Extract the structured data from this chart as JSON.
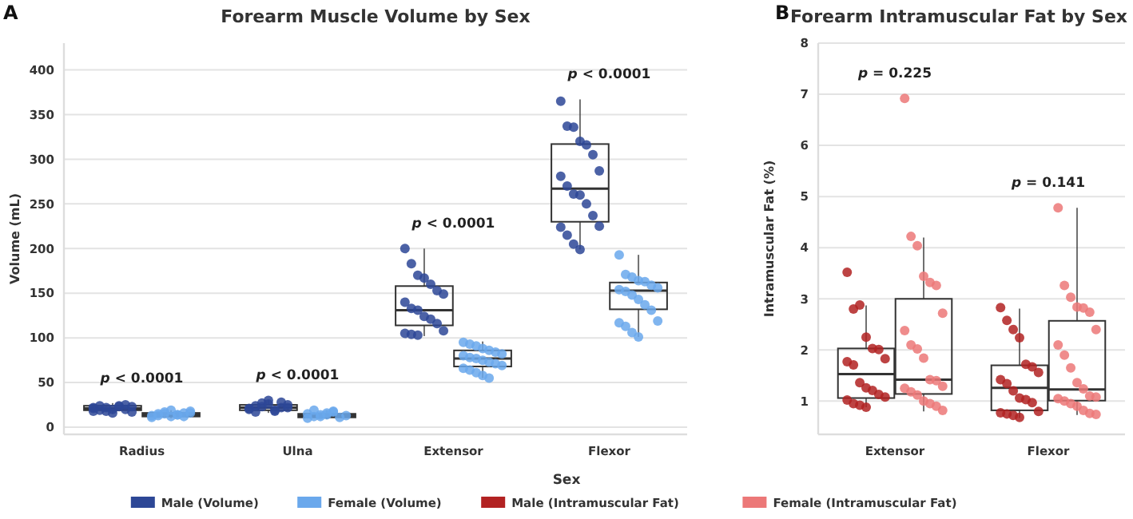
{
  "chart_data": [
    {
      "type": "box",
      "title": "Forearm Muscle Volume by Sex",
      "ylabel": "Volume (mL)",
      "categories": [
        "Radius",
        "Ulna",
        "Extensor",
        "Flexor"
      ],
      "ylim": [
        -8,
        430
      ],
      "yticks": [
        0,
        50,
        100,
        150,
        200,
        250,
        300,
        350,
        400
      ],
      "grid": "y",
      "legend": "bottom",
      "legend_title": "Sex",
      "annotations": [
        "A",
        "p < 0.0001",
        "p < 0.0001",
        "p < 0.0001",
        "p < 0.0001"
      ],
      "series": [
        {
          "color": "#333333",
          "boxes": [
            {
              "low": 15,
              "q1": 19,
              "median": 21,
              "q3": 24,
              "high": 27
            },
            {
              "low": 16,
              "q1": 19,
              "median": 22,
              "q3": 25,
              "high": 30
            },
            {
              "low": 102,
              "q1": 114,
              "median": 131,
              "q3": 158,
              "high": 200
            },
            {
              "low": 199,
              "q1": 230,
              "median": 267,
              "q3": 317,
              "high": 367
            }
          ]
        },
        {
          "color": "#333333",
          "boxes": [
            {
              "low": 10,
              "q1": 12,
              "median": 14,
              "q3": 16,
              "high": 19
            },
            {
              "low": 9,
              "q1": 11,
              "median": 13,
              "q3": 15,
              "high": 19
            },
            {
              "low": 55,
              "q1": 68,
              "median": 77,
              "q3": 86,
              "high": 96
            },
            {
              "low": 101,
              "q1": 132,
              "median": 153,
              "q3": 162,
              "high": 193
            }
          ]
        },
        {
          "name": "Male (Volume)",
          "type": "scatter",
          "color": "#2d4796",
          "x": [
            "Radius",
            "Radius",
            "Radius",
            "Radius",
            "Radius",
            "Radius",
            "Radius",
            "Radius",
            "Radius",
            "Radius",
            "Radius",
            "Radius",
            "Radius",
            "Radius",
            "Radius",
            "Ulna",
            "Ulna",
            "Ulna",
            "Ulna",
            "Ulna",
            "Ulna",
            "Ulna",
            "Ulna",
            "Ulna",
            "Ulna",
            "Ulna",
            "Ulna",
            "Ulna",
            "Ulna",
            "Extensor",
            "Extensor",
            "Extensor",
            "Extensor",
            "Extensor",
            "Extensor",
            "Extensor",
            "Extensor",
            "Extensor",
            "Extensor",
            "Extensor",
            "Extensor",
            "Extensor",
            "Extensor",
            "Extensor",
            "Extensor",
            "Extensor",
            "Flexor",
            "Flexor",
            "Flexor",
            "Flexor",
            "Flexor",
            "Flexor",
            "Flexor",
            "Flexor",
            "Flexor",
            "Flexor",
            "Flexor",
            "Flexor",
            "Flexor",
            "Flexor",
            "Flexor",
            "Flexor",
            "Flexor",
            "Flexor"
          ],
          "values": [
            22,
            24,
            18,
            20,
            23,
            25,
            17,
            21,
            19,
            22,
            16,
            24,
            20,
            23,
            18,
            20,
            24,
            27,
            30,
            18,
            22,
            25,
            21,
            17,
            23,
            26,
            19,
            28,
            22,
            200,
            183,
            170,
            167,
            160,
            153,
            149,
            140,
            133,
            131,
            124,
            121,
            116,
            108,
            105,
            104,
            103,
            365,
            337,
            336,
            320,
            316,
            305,
            287,
            281,
            270,
            261,
            260,
            250,
            237,
            225,
            224,
            215,
            205,
            199
          ]
        },
        {
          "name": "Female (Volume)",
          "type": "scatter",
          "color": "#6aa8ec",
          "x": [
            "Radius",
            "Radius",
            "Radius",
            "Radius",
            "Radius",
            "Radius",
            "Radius",
            "Radius",
            "Radius",
            "Radius",
            "Radius",
            "Radius",
            "Radius",
            "Radius",
            "Ulna",
            "Ulna",
            "Ulna",
            "Ulna",
            "Ulna",
            "Ulna",
            "Ulna",
            "Ulna",
            "Ulna",
            "Ulna",
            "Ulna",
            "Ulna",
            "Extensor",
            "Extensor",
            "Extensor",
            "Extensor",
            "Extensor",
            "Extensor",
            "Extensor",
            "Extensor",
            "Extensor",
            "Extensor",
            "Extensor",
            "Extensor",
            "Extensor",
            "Extensor",
            "Extensor",
            "Extensor",
            "Extensor",
            "Extensor",
            "Extensor",
            "Flexor",
            "Flexor",
            "Flexor",
            "Flexor",
            "Flexor",
            "Flexor",
            "Flexor",
            "Flexor",
            "Flexor",
            "Flexor",
            "Flexor",
            "Flexor",
            "Flexor",
            "Flexor",
            "Flexor",
            "Flexor",
            "Flexor",
            "Flexor"
          ],
          "values": [
            13,
            15,
            17,
            12,
            14,
            16,
            18,
            11,
            13,
            15,
            19,
            14,
            12,
            16,
            10,
            12,
            14,
            16,
            18,
            11,
            13,
            15,
            19,
            12,
            14,
            17,
            95,
            93,
            91,
            88,
            86,
            84,
            82,
            80,
            78,
            77,
            75,
            73,
            71,
            69,
            66,
            64,
            61,
            58,
            55,
            193,
            171,
            168,
            164,
            163,
            159,
            156,
            154,
            152,
            148,
            143,
            137,
            131,
            119,
            117,
            113,
            106,
            101
          ]
        }
      ]
    },
    {
      "type": "box",
      "title": "Forearm Intramuscular Fat by Sex",
      "ylabel": "Intramuscular Fat (%)",
      "categories": [
        "Extensor",
        "Flexor"
      ],
      "ylim": [
        0.35,
        8
      ],
      "yticks": [
        1,
        2,
        3,
        4,
        5,
        6,
        7,
        8
      ],
      "grid": "y",
      "legend": "bottom",
      "annotations": [
        "B",
        "p = 0.225",
        "p = 0.141"
      ],
      "series": [
        {
          "color": "#333333",
          "boxes": [
            {
              "low": 0.88,
              "q1": 1.06,
              "median": 1.53,
              "q3": 2.03,
              "high": 2.87
            },
            {
              "low": 0.67,
              "q1": 0.82,
              "median": 1.26,
              "q3": 1.7,
              "high": 2.81
            }
          ]
        },
        {
          "color": "#333333",
          "boxes": [
            {
              "low": 0.8,
              "q1": 1.14,
              "median": 1.42,
              "q3": 3.0,
              "high": 4.2
            },
            {
              "low": 0.73,
              "q1": 1.01,
              "median": 1.23,
              "q3": 2.57,
              "high": 4.78
            }
          ]
        },
        {
          "name": "Male (Intramuscular Fat)",
          "type": "scatter",
          "color": "#b22222",
          "x": [
            "Extensor",
            "Extensor",
            "Extensor",
            "Extensor",
            "Extensor",
            "Extensor",
            "Extensor",
            "Extensor",
            "Extensor",
            "Extensor",
            "Extensor",
            "Extensor",
            "Extensor",
            "Extensor",
            "Extensor",
            "Extensor",
            "Extensor",
            "Extensor",
            "Flexor",
            "Flexor",
            "Flexor",
            "Flexor",
            "Flexor",
            "Flexor",
            "Flexor",
            "Flexor",
            "Flexor",
            "Flexor",
            "Flexor",
            "Flexor",
            "Flexor",
            "Flexor",
            "Flexor",
            "Flexor",
            "Flexor",
            "Flexor"
          ],
          "values": [
            3.52,
            2.8,
            2.88,
            2.25,
            2.03,
            2.01,
            1.83,
            1.77,
            1.71,
            1.36,
            1.26,
            1.21,
            1.13,
            1.08,
            1.02,
            0.95,
            0.92,
            0.88,
            2.83,
            2.58,
            2.4,
            2.24,
            1.72,
            1.67,
            1.56,
            1.42,
            1.34,
            1.2,
            1.06,
            1.03,
            0.97,
            0.8,
            0.77,
            0.75,
            0.72,
            0.68
          ]
        },
        {
          "name": "Female (Intramuscular Fat)",
          "type": "scatter",
          "color": "#ec7878",
          "x": [
            "Extensor",
            "Extensor",
            "Extensor",
            "Extensor",
            "Extensor",
            "Extensor",
            "Extensor",
            "Extensor",
            "Extensor",
            "Extensor",
            "Extensor",
            "Extensor",
            "Extensor",
            "Extensor",
            "Extensor",
            "Extensor",
            "Extensor",
            "Extensor",
            "Extensor",
            "Extensor",
            "Extensor",
            "Flexor",
            "Flexor",
            "Flexor",
            "Flexor",
            "Flexor",
            "Flexor",
            "Flexor",
            "Flexor",
            "Flexor",
            "Flexor",
            "Flexor",
            "Flexor",
            "Flexor",
            "Flexor",
            "Flexor",
            "Flexor",
            "Flexor",
            "Flexor",
            "Flexor",
            "Flexor",
            "Flexor"
          ],
          "values": [
            6.92,
            4.22,
            4.04,
            3.44,
            3.32,
            3.26,
            2.72,
            2.38,
            2.1,
            2.02,
            1.84,
            1.42,
            1.4,
            1.29,
            1.25,
            1.18,
            1.12,
            1.0,
            0.95,
            0.9,
            0.82,
            4.78,
            3.26,
            3.03,
            2.84,
            2.82,
            2.74,
            2.4,
            2.1,
            1.9,
            1.65,
            1.36,
            1.24,
            1.1,
            1.08,
            1.05,
            1.0,
            0.95,
            0.9,
            0.82,
            0.76,
            0.74
          ]
        }
      ]
    }
  ]
}
